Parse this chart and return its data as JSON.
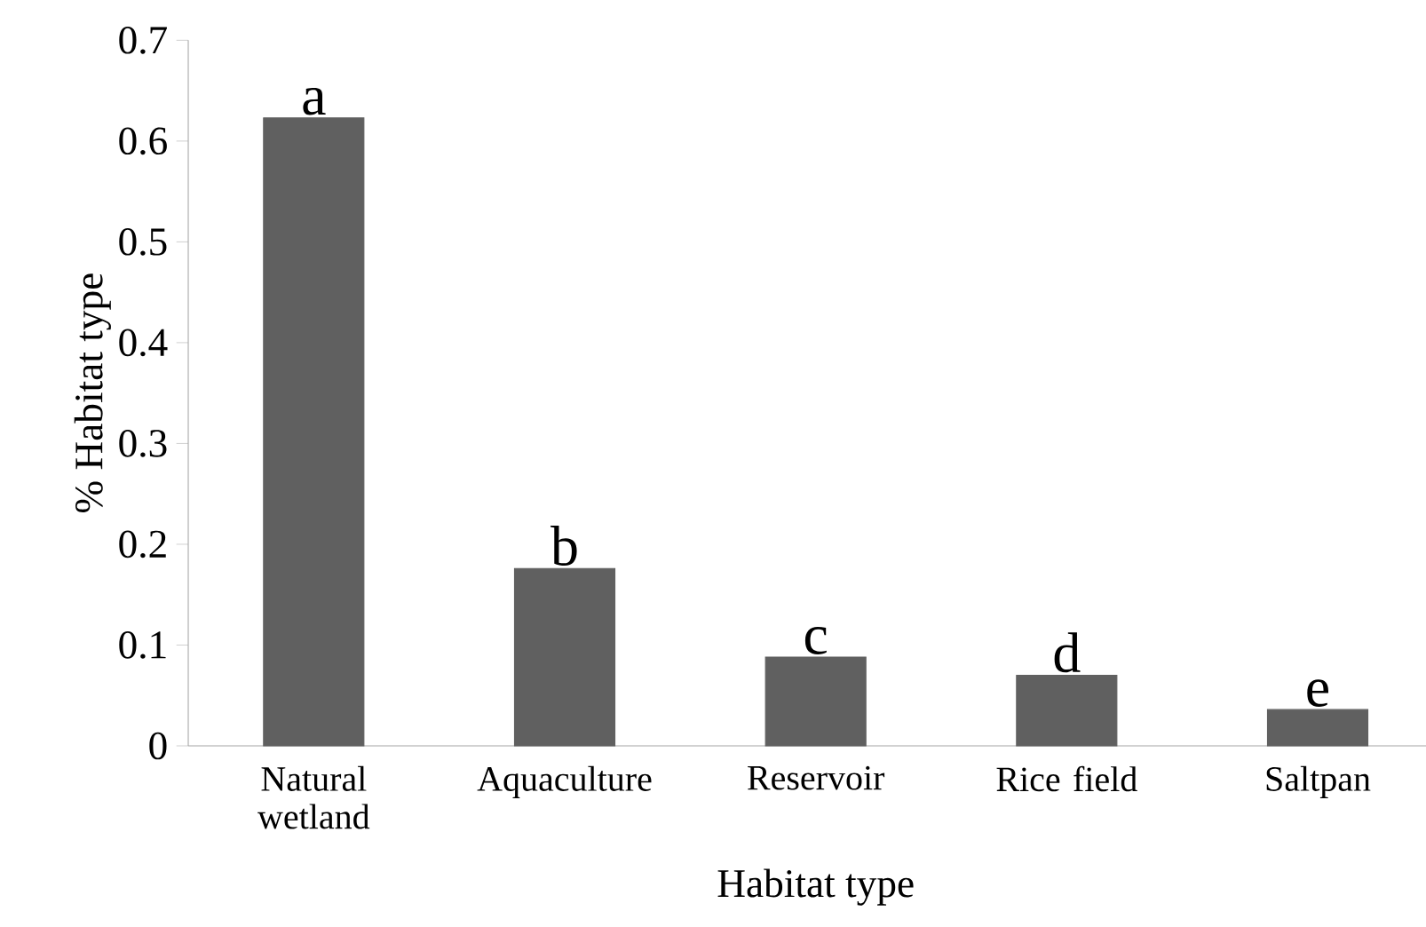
{
  "chart_data": {
    "type": "bar",
    "xlabel": "Habitat type",
    "ylabel": "% Habitat type",
    "categories": [
      "Natural wetland",
      "Aquaculture",
      "Reservoir",
      "Rice field",
      "Saltpan"
    ],
    "values": [
      0.623,
      0.176,
      0.088,
      0.07,
      0.036
    ],
    "color": "#606060",
    "ylim": [
      0,
      0.7
    ],
    "yticks": [
      0,
      0.1,
      0.2,
      0.3,
      0.4,
      0.5,
      0.6,
      0.7
    ],
    "annotations": [
      {
        "text": "a",
        "x": "Natural wetland",
        "y": 0.623
      },
      {
        "text": "b",
        "x": "Aquaculture",
        "y": 0.176
      },
      {
        "text": "c",
        "x": "Reservoir",
        "y": 0.088
      },
      {
        "text": "d",
        "x": "Rice field",
        "y": 0.07
      },
      {
        "text": "e",
        "x": "Saltpan",
        "y": 0.036
      }
    ]
  }
}
